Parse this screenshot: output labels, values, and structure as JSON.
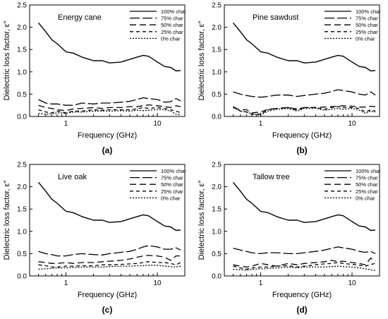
{
  "figure": {
    "yaxis_symbol": "ε″"
  },
  "chart_data": [
    {
      "type": "line",
      "title": "Energy cane",
      "caption": "(a)",
      "xlabel": "Frequency (GHz)",
      "ylabel": "Dielectric loss factor, ",
      "xscale": "log",
      "xlim": [
        0.4,
        20
      ],
      "ylim": [
        0.0,
        2.5
      ],
      "xticks": [
        1,
        10
      ],
      "xtick_labels": [
        "1",
        "10"
      ],
      "yticks": [
        0.0,
        0.5,
        1.0,
        1.5,
        2.0,
        2.5
      ],
      "ytick_labels": [
        "0.0",
        "0.5",
        "1.0",
        "1.5",
        "2.0",
        "2.5"
      ],
      "x": [
        0.5,
        0.6,
        0.7,
        0.8,
        1.0,
        1.2,
        1.5,
        2.0,
        2.5,
        3.0,
        4.0,
        5.0,
        6.0,
        7.0,
        8.0,
        10.0,
        12.0,
        14.0,
        16.0,
        18.0
      ],
      "series": [
        {
          "name": "100% char",
          "values": [
            2.1,
            1.9,
            1.72,
            1.63,
            1.45,
            1.42,
            1.33,
            1.25,
            1.25,
            1.2,
            1.22,
            1.28,
            1.33,
            1.37,
            1.35,
            1.22,
            1.12,
            1.1,
            1.02,
            1.03
          ]
        },
        {
          "name": "75% char",
          "values": [
            0.38,
            0.3,
            0.28,
            0.28,
            0.25,
            0.25,
            0.3,
            0.28,
            0.3,
            0.3,
            0.32,
            0.34,
            0.38,
            0.42,
            0.4,
            0.38,
            0.32,
            0.33,
            0.4,
            0.35
          ]
        },
        {
          "name": "50% char",
          "values": [
            0.25,
            0.2,
            0.18,
            0.15,
            0.13,
            0.17,
            0.18,
            0.2,
            0.18,
            0.2,
            0.2,
            0.22,
            0.22,
            0.24,
            0.26,
            0.24,
            0.22,
            0.2,
            0.24,
            0.22
          ]
        },
        {
          "name": "25% char",
          "values": [
            0.15,
            0.1,
            0.08,
            0.12,
            0.08,
            0.12,
            0.12,
            0.15,
            0.14,
            0.15,
            0.15,
            0.15,
            0.17,
            0.2,
            0.18,
            0.2,
            0.18,
            0.15,
            0.12,
            0.08
          ]
        },
        {
          "name": "0% char",
          "values": [
            0.07,
            0.05,
            0.06,
            0.08,
            0.07,
            0.1,
            0.1,
            0.12,
            0.12,
            0.12,
            0.13,
            0.12,
            0.14,
            0.13,
            0.14,
            0.16,
            0.15,
            0.12,
            0.05,
            0.04
          ]
        }
      ]
    },
    {
      "type": "line",
      "title": "Pine sawdust",
      "caption": "(b)",
      "xlabel": "Frequency (GHz)",
      "ylabel": "Dielectric loss factor, ",
      "xscale": "log",
      "xlim": [
        0.4,
        20
      ],
      "ylim": [
        0.0,
        2.5
      ],
      "xticks": [
        1,
        10
      ],
      "xtick_labels": [
        "1",
        "10"
      ],
      "yticks": [
        0.0,
        0.5,
        1.0,
        1.5,
        2.0,
        2.5
      ],
      "ytick_labels": [
        "0.0",
        "0.5",
        "1.0",
        "1.5",
        "2.0",
        "2.5"
      ],
      "x": [
        0.5,
        0.6,
        0.7,
        0.8,
        1.0,
        1.2,
        1.5,
        2.0,
        2.5,
        3.0,
        4.0,
        5.0,
        6.0,
        7.0,
        8.0,
        10.0,
        12.0,
        14.0,
        16.0,
        18.0
      ],
      "series": [
        {
          "name": "100% char",
          "values": [
            2.1,
            1.9,
            1.72,
            1.63,
            1.45,
            1.42,
            1.33,
            1.25,
            1.25,
            1.2,
            1.22,
            1.28,
            1.33,
            1.37,
            1.35,
            1.22,
            1.12,
            1.1,
            1.02,
            1.03
          ]
        },
        {
          "name": "75% char",
          "values": [
            0.55,
            0.5,
            0.47,
            0.45,
            0.43,
            0.45,
            0.48,
            0.48,
            0.45,
            0.47,
            0.5,
            0.52,
            0.56,
            0.6,
            0.58,
            0.55,
            0.5,
            0.48,
            0.55,
            0.48
          ]
        },
        {
          "name": "50% char",
          "values": [
            0.2,
            0.15,
            0.15,
            0.08,
            0.1,
            0.16,
            0.18,
            0.2,
            0.17,
            0.2,
            0.2,
            0.21,
            0.22,
            0.23,
            0.24,
            0.23,
            0.21,
            0.21,
            0.23,
            0.22
          ]
        },
        {
          "name": "25% char",
          "values": [
            0.22,
            0.12,
            0.1,
            0.05,
            0.05,
            0.15,
            0.18,
            0.2,
            0.14,
            0.2,
            0.2,
            0.16,
            0.2,
            0.22,
            0.2,
            0.2,
            0.18,
            0.1,
            0.15,
            0.12
          ]
        },
        {
          "name": "0% char",
          "values": [
            0.2,
            0.12,
            0.1,
            0.06,
            0.03,
            0.12,
            0.16,
            0.18,
            0.12,
            0.18,
            0.18,
            0.14,
            0.16,
            0.18,
            0.16,
            0.18,
            0.14,
            0.07,
            0.12,
            0.1
          ]
        }
      ]
    },
    {
      "type": "line",
      "title": "Live oak",
      "caption": "(c)",
      "xlabel": "Frequency (GHz)",
      "ylabel": "Dielectric loss factor, ",
      "xscale": "log",
      "xlim": [
        0.4,
        20
      ],
      "ylim": [
        0.0,
        2.5
      ],
      "xticks": [
        1,
        10
      ],
      "xtick_labels": [
        "1",
        "10"
      ],
      "yticks": [
        0.0,
        0.5,
        1.0,
        1.5,
        2.0,
        2.5
      ],
      "ytick_labels": [
        "0.0",
        "0.5",
        "1.0",
        "1.5",
        "2.0",
        "2.5"
      ],
      "x": [
        0.5,
        0.6,
        0.7,
        0.8,
        1.0,
        1.2,
        1.5,
        2.0,
        2.5,
        3.0,
        4.0,
        5.0,
        6.0,
        7.0,
        8.0,
        10.0,
        12.0,
        14.0,
        16.0,
        18.0
      ],
      "series": [
        {
          "name": "100% char",
          "values": [
            2.1,
            1.9,
            1.72,
            1.63,
            1.45,
            1.42,
            1.33,
            1.25,
            1.25,
            1.2,
            1.22,
            1.28,
            1.33,
            1.37,
            1.35,
            1.22,
            1.12,
            1.1,
            1.02,
            1.03
          ]
        },
        {
          "name": "75% char",
          "values": [
            0.55,
            0.5,
            0.48,
            0.45,
            0.45,
            0.48,
            0.5,
            0.48,
            0.47,
            0.5,
            0.53,
            0.55,
            0.6,
            0.65,
            0.68,
            0.65,
            0.6,
            0.6,
            0.63,
            0.58
          ]
        },
        {
          "name": "50% char",
          "values": [
            0.32,
            0.3,
            0.28,
            0.28,
            0.3,
            0.28,
            0.3,
            0.3,
            0.32,
            0.33,
            0.35,
            0.38,
            0.42,
            0.45,
            0.46,
            0.45,
            0.42,
            0.35,
            0.45,
            0.45
          ]
        },
        {
          "name": "25% char",
          "values": [
            0.25,
            0.23,
            0.2,
            0.2,
            0.22,
            0.22,
            0.23,
            0.23,
            0.25,
            0.25,
            0.26,
            0.27,
            0.28,
            0.3,
            0.32,
            0.3,
            0.3,
            0.28,
            0.25,
            0.3
          ]
        },
        {
          "name": "0% char",
          "values": [
            0.15,
            0.16,
            0.17,
            0.18,
            0.18,
            0.19,
            0.2,
            0.2,
            0.2,
            0.21,
            0.22,
            0.22,
            0.23,
            0.23,
            0.24,
            0.24,
            0.22,
            0.21,
            0.2,
            0.22
          ]
        }
      ]
    },
    {
      "type": "line",
      "title": "Tallow tree",
      "caption": "(d)",
      "xlabel": "Frequency (GHz)",
      "ylabel": "Dielectric loss factor, ",
      "xscale": "log",
      "xlim": [
        0.4,
        20
      ],
      "ylim": [
        0.0,
        2.5
      ],
      "xticks": [
        1,
        10
      ],
      "xtick_labels": [
        "1",
        "10"
      ],
      "yticks": [
        0.0,
        0.5,
        1.0,
        1.5,
        2.0,
        2.5
      ],
      "ytick_labels": [
        "0.0",
        "0.5",
        "1.0",
        "1.5",
        "2.0",
        "2.5"
      ],
      "x": [
        0.5,
        0.6,
        0.7,
        0.8,
        1.0,
        1.2,
        1.5,
        2.0,
        2.5,
        3.0,
        4.0,
        5.0,
        6.0,
        7.0,
        8.0,
        10.0,
        12.0,
        14.0,
        16.0,
        18.0
      ],
      "series": [
        {
          "name": "100% char",
          "values": [
            2.1,
            1.9,
            1.72,
            1.63,
            1.45,
            1.42,
            1.33,
            1.25,
            1.25,
            1.2,
            1.22,
            1.28,
            1.33,
            1.37,
            1.35,
            1.22,
            1.12,
            1.1,
            1.02,
            1.03
          ]
        },
        {
          "name": "75% char",
          "values": [
            0.62,
            0.58,
            0.55,
            0.52,
            0.5,
            0.52,
            0.52,
            0.5,
            0.5,
            0.52,
            0.55,
            0.58,
            0.62,
            0.65,
            0.63,
            0.6,
            0.55,
            0.53,
            0.55,
            0.5
          ]
        },
        {
          "name": "50% char",
          "values": [
            0.25,
            0.22,
            0.2,
            0.22,
            0.28,
            0.25,
            0.22,
            0.28,
            0.25,
            0.28,
            0.3,
            0.32,
            0.35,
            0.32,
            0.33,
            0.3,
            0.28,
            0.25,
            0.4,
            0.33
          ]
        },
        {
          "name": "25% char",
          "values": [
            0.22,
            0.18,
            0.15,
            0.18,
            0.2,
            0.2,
            0.22,
            0.23,
            0.2,
            0.22,
            0.25,
            0.27,
            0.28,
            0.3,
            0.28,
            0.26,
            0.24,
            0.22,
            0.26,
            0.28
          ]
        },
        {
          "name": "0% char",
          "values": [
            0.15,
            0.14,
            0.13,
            0.15,
            0.16,
            0.17,
            0.18,
            0.2,
            0.18,
            0.2,
            0.2,
            0.2,
            0.21,
            0.22,
            0.21,
            0.2,
            0.18,
            0.16,
            0.14,
            0.12
          ]
        }
      ]
    }
  ]
}
